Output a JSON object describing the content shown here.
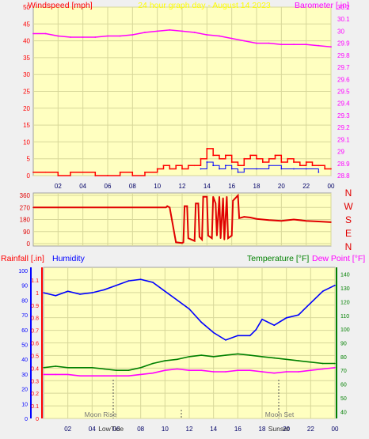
{
  "colors": {
    "plot_bg": "#ffffc0",
    "grid": "#d7d799",
    "wind": "#ff0000",
    "gust_blue": "#0000ff",
    "gust_green": "#008000",
    "barometer": "#ff00ff",
    "direction": "#e00000",
    "humidity": "#0000ff",
    "temperature": "#008000",
    "dewpoint": "#ff00ff",
    "rain_axis": "#ff0000",
    "title": "#ffff00",
    "moon_sun": "#777777"
  },
  "header": {
    "windspeed_label": "Windspeed [mph]",
    "title": "24 hour graph day - August 14 2023",
    "barometer_label": "Barometer [.in]"
  },
  "lower_header": {
    "rainfall_label": "Rainfall [.in]",
    "humidity_label": "Humidity",
    "temperature_label": "Temperature [°F]",
    "dewpoint_label": "Dew Point [°F]"
  },
  "compass_labels": [
    "N",
    "W",
    "S",
    "E",
    "N"
  ],
  "moon_sun": {
    "moon_rise": "Moon Rise",
    "moon_set": "Moon Set",
    "low_tide": "Low",
    "tide_two": "Tide",
    "sunset": "Sunset"
  },
  "chart_data": [
    {
      "type": "line",
      "name": "wind-barometer",
      "x_ticks": [
        "02",
        "04",
        "06",
        "08",
        "10",
        "12",
        "14",
        "16",
        "18",
        "20",
        "22",
        "00"
      ],
      "xlim": [
        0,
        24
      ],
      "y_left": {
        "label": "Windspeed [mph]",
        "ylim": [
          0,
          50
        ],
        "ticks": [
          0,
          5,
          10,
          15,
          20,
          25,
          30,
          35,
          40,
          45,
          50
        ]
      },
      "y_right": {
        "label": "Barometer [.in]",
        "ylim": [
          28.8,
          30.2
        ],
        "ticks": [
          "28.8",
          "28.9",
          "29",
          "29.1",
          "29.2",
          "29.3",
          "29.4",
          "29.5",
          "29.6",
          "29.7",
          "29.8",
          "29.9",
          "30",
          "30.1",
          "30.2"
        ]
      },
      "series": [
        {
          "name": "Barometer [.in]",
          "axis": "right",
          "x": [
            0,
            1,
            2,
            3,
            4,
            5,
            6,
            7,
            8,
            9,
            10,
            11,
            12,
            13,
            14,
            15,
            16,
            17,
            18,
            19,
            20,
            21,
            22,
            23,
            24
          ],
          "values": [
            29.98,
            29.98,
            29.96,
            29.95,
            29.95,
            29.95,
            29.96,
            29.96,
            29.97,
            29.99,
            30.0,
            30.01,
            30.0,
            29.99,
            29.97,
            29.96,
            29.94,
            29.92,
            29.9,
            29.9,
            29.89,
            29.89,
            29.89,
            29.88,
            29.87
          ]
        },
        {
          "name": "Windspeed [mph]",
          "axis": "left",
          "x": [
            0,
            1,
            2,
            3,
            4,
            5,
            6,
            7,
            8,
            9,
            10,
            10.5,
            11,
            11.5,
            12,
            12.5,
            13,
            13.5,
            14,
            14.5,
            15,
            15.5,
            16,
            16.5,
            17,
            17.5,
            18,
            18.5,
            19,
            19.5,
            20,
            20.5,
            21,
            21.5,
            22,
            22.5,
            23,
            23.5,
            24
          ],
          "values": [
            1,
            1,
            0,
            1,
            1,
            0,
            0,
            1,
            0,
            1,
            2,
            3,
            2,
            3,
            2,
            3,
            3,
            5,
            8,
            6,
            5,
            6,
            4,
            3,
            5,
            6,
            5,
            4,
            5,
            6,
            4,
            5,
            4,
            3,
            4,
            3,
            3,
            2,
            2
          ]
        },
        {
          "name": "Gust",
          "axis": "left",
          "x": [
            13.5,
            14,
            14.5,
            15,
            15.5,
            16,
            16.5,
            17,
            18,
            19,
            20,
            21,
            22,
            23
          ],
          "values": [
            2,
            4,
            3,
            2,
            3,
            2,
            1,
            2,
            2,
            3,
            2,
            2,
            2,
            1
          ]
        }
      ]
    },
    {
      "type": "line",
      "name": "wind-direction",
      "y_ticks": [
        0,
        90,
        180,
        270,
        360
      ],
      "ylim": [
        0,
        360
      ],
      "xlim": [
        0,
        24
      ],
      "series": [
        {
          "name": "Wind Direction",
          "x": [
            0,
            10.7,
            10.8,
            11.0,
            11.5,
            12.0,
            12.1,
            12.2,
            12.4,
            12.5,
            13.0,
            13.1,
            13.3,
            13.4,
            13.6,
            13.7,
            14.0,
            14.1,
            14.4,
            14.5,
            14.7,
            14.8,
            15.0,
            15.1,
            15.3,
            15.4,
            15.6,
            15.7,
            16.0,
            16.1,
            16.5,
            16.6,
            17.0,
            17.5,
            18.0,
            19.0,
            20.0,
            21.0,
            22.0,
            23.0,
            24.0
          ],
          "values": [
            270,
            270,
            280,
            270,
            10,
            5,
            10,
            280,
            280,
            40,
            20,
            300,
            300,
            50,
            30,
            350,
            350,
            60,
            40,
            350,
            300,
            60,
            350,
            40,
            340,
            30,
            350,
            40,
            60,
            320,
            360,
            190,
            200,
            195,
            185,
            175,
            170,
            180,
            170,
            165,
            160
          ]
        }
      ]
    },
    {
      "type": "line",
      "name": "rain-humidity-temperature",
      "xlim": [
        0,
        24
      ],
      "y_left_rain": {
        "label": "Rainfall [.in]",
        "ylim": [
          0,
          1.2
        ],
        "ticks": [
          "0",
          "0.1",
          "0.2",
          "0.3",
          "0.4",
          "0.5",
          "0.6",
          "0.7",
          "0.8",
          "0.9",
          "1",
          "1.1"
        ]
      },
      "y_left_humidity": {
        "label": "Humidity",
        "ylim": [
          0,
          100
        ],
        "ticks": [
          0,
          10,
          20,
          30,
          40,
          50,
          60,
          70,
          80,
          90,
          100
        ]
      },
      "y_right": {
        "label": "Temperature [°F]",
        "ylim": [
          35,
          145
        ],
        "ticks": [
          40,
          50,
          60,
          70,
          80,
          90,
          100,
          110,
          120,
          130,
          140
        ]
      },
      "series": [
        {
          "name": "Humidity",
          "axis": "humidity",
          "x": [
            0,
            1,
            2,
            3,
            4,
            5,
            6,
            7,
            8,
            9,
            10,
            11,
            12,
            13,
            14,
            15,
            16,
            17,
            17.5,
            18,
            19,
            20,
            21,
            22,
            23,
            24
          ],
          "values": [
            85,
            83,
            86,
            84,
            85,
            87,
            90,
            93,
            94,
            92,
            86,
            80,
            74,
            65,
            58,
            53,
            56,
            56,
            60,
            67,
            63,
            68,
            70,
            78,
            86,
            90
          ]
        },
        {
          "name": "Temperature [°F]",
          "axis": "right",
          "x": [
            0,
            1,
            2,
            3,
            4,
            5,
            6,
            7,
            8,
            9,
            10,
            11,
            12,
            13,
            14,
            15,
            16,
            17,
            18,
            19,
            20,
            21,
            22,
            23,
            24
          ],
          "values": [
            72,
            73,
            72,
            72,
            72,
            71,
            70,
            70,
            72,
            75,
            77,
            78,
            80,
            81,
            80,
            81,
            82,
            81,
            80,
            79,
            78,
            77,
            76,
            75,
            75
          ]
        },
        {
          "name": "Dew Point [°F]",
          "axis": "right",
          "x": [
            0,
            1,
            2,
            3,
            4,
            5,
            6,
            7,
            8,
            9,
            10,
            11,
            12,
            13,
            14,
            15,
            16,
            17,
            18,
            19,
            20,
            21,
            22,
            23,
            24
          ],
          "values": [
            67,
            67,
            67,
            66,
            66,
            66,
            66,
            66,
            67,
            68,
            70,
            71,
            70,
            70,
            69,
            69,
            70,
            70,
            69,
            68,
            69,
            69,
            70,
            71,
            72
          ]
        }
      ]
    }
  ]
}
